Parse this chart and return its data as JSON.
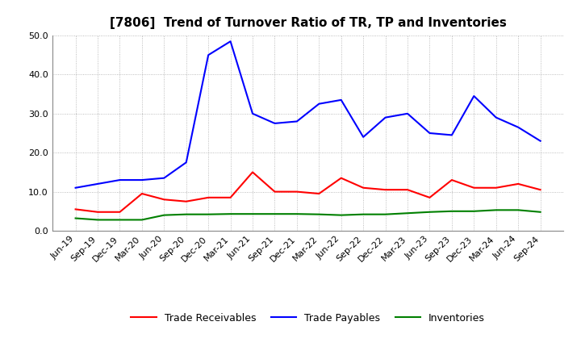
{
  "title": "[7806]  Trend of Turnover Ratio of TR, TP and Inventories",
  "xlabels": [
    "Jun-19",
    "Sep-19",
    "Dec-19",
    "Mar-20",
    "Jun-20",
    "Sep-20",
    "Dec-20",
    "Mar-21",
    "Jun-21",
    "Sep-21",
    "Dec-21",
    "Mar-22",
    "Jun-22",
    "Sep-22",
    "Dec-22",
    "Mar-23",
    "Jun-23",
    "Sep-23",
    "Dec-23",
    "Mar-24",
    "Jun-24",
    "Sep-24"
  ],
  "trade_receivables": [
    5.5,
    4.8,
    4.8,
    9.5,
    8.0,
    7.5,
    8.5,
    8.5,
    15.0,
    10.0,
    10.0,
    9.5,
    13.5,
    11.0,
    10.5,
    10.5,
    8.5,
    13.0,
    11.0,
    11.0,
    12.0,
    10.5
  ],
  "trade_payables": [
    11.0,
    12.0,
    13.0,
    13.0,
    13.5,
    17.5,
    45.0,
    48.5,
    30.0,
    27.5,
    28.0,
    32.5,
    33.5,
    24.0,
    29.0,
    30.0,
    25.0,
    24.5,
    34.5,
    29.0,
    26.5,
    23.0
  ],
  "inventories": [
    3.2,
    2.8,
    2.8,
    2.8,
    4.0,
    4.2,
    4.2,
    4.3,
    4.3,
    4.3,
    4.3,
    4.2,
    4.0,
    4.2,
    4.2,
    4.5,
    4.8,
    5.0,
    5.0,
    5.3,
    5.3,
    4.8
  ],
  "ylim": [
    0.0,
    50.0
  ],
  "yticks": [
    0.0,
    10.0,
    20.0,
    30.0,
    40.0,
    50.0
  ],
  "line_colors": {
    "trade_receivables": "red",
    "trade_payables": "blue",
    "inventories": "green"
  },
  "legend_labels": [
    "Trade Receivables",
    "Trade Payables",
    "Inventories"
  ],
  "background_color": "#ffffff",
  "grid_color": "#aaaaaa",
  "title_fontsize": 11,
  "tick_fontsize": 8,
  "legend_fontsize": 9,
  "linewidth": 1.5,
  "label_rotation": 45
}
